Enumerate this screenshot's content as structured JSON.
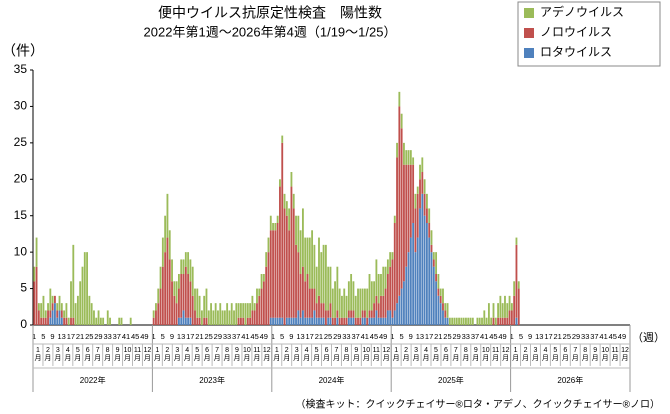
{
  "chart_data": {
    "type": "stacked_bar",
    "title": "便中ウイルス抗原定性検査　陽性数",
    "subtitle": "2022年第1週～2026年第4週（1/19～1/25）",
    "y_label": "（件）",
    "x_label": "（週）",
    "note": "（検査キット：クイックチェイサー®ロタ・アデノ、クイックチェイサー®ノロ）",
    "ylim": [
      0,
      35
    ],
    "yticks": [
      0,
      5,
      10,
      15,
      20,
      25,
      30,
      35
    ],
    "grid": false,
    "legend": "upper right",
    "years": [
      "2022年",
      "2023年",
      "2024年",
      "2025年",
      "2026年"
    ],
    "months": [
      "1月",
      "2月",
      "3月",
      "4月",
      "5月",
      "6月",
      "7月",
      "8月",
      "9月",
      "10月",
      "11月",
      "12月"
    ],
    "categories": [
      "1",
      null,
      null,
      null,
      "5",
      null,
      null,
      null,
      "9",
      null,
      null,
      null,
      "13",
      null,
      null,
      null,
      "17",
      null,
      null,
      null,
      "21",
      null,
      null,
      null,
      "25",
      null,
      null,
      null,
      "29",
      null,
      null,
      null,
      "33",
      null,
      null,
      null,
      "37",
      null,
      null,
      null,
      "41",
      null,
      null,
      null,
      "45",
      null,
      null,
      null,
      "49",
      null,
      null,
      null,
      "1",
      null,
      null,
      null,
      "5",
      null,
      null,
      null,
      "9",
      null,
      null,
      null,
      "13",
      null,
      null,
      null,
      "17",
      null,
      null,
      null,
      "21",
      null,
      null,
      null,
      "25",
      null,
      null,
      null,
      "29",
      null,
      null,
      null,
      "33",
      null,
      null,
      null,
      "37",
      null,
      null,
      null,
      "41",
      null,
      null,
      null,
      "45",
      null,
      null,
      null,
      "49",
      null,
      null,
      null,
      "1",
      null,
      null,
      null,
      "5",
      null,
      null,
      null,
      "9",
      null,
      null,
      null,
      "13",
      null,
      null,
      null,
      "17",
      null,
      null,
      null,
      "21",
      null,
      null,
      null,
      "25",
      null,
      null,
      null,
      "29",
      null,
      null,
      null,
      "33",
      null,
      null,
      null,
      "37",
      null,
      null,
      null,
      "41",
      null,
      null,
      null,
      "45",
      null,
      null,
      null,
      "49",
      null,
      null,
      null,
      "1",
      null,
      null,
      null,
      "5",
      null,
      null,
      null,
      "9",
      null,
      null,
      null,
      "13",
      null,
      null,
      null,
      "17",
      null,
      null,
      null,
      "21",
      null,
      null,
      null,
      "25",
      null,
      null,
      null,
      "29",
      null,
      null,
      null,
      "33",
      null,
      null,
      null,
      "37",
      null,
      null,
      null,
      "41",
      null,
      null,
      null,
      "45",
      null,
      null,
      null,
      "49",
      null,
      null,
      null,
      "1",
      null,
      null,
      null,
      "5",
      null,
      null,
      null,
      "9",
      null,
      null,
      null,
      "13",
      null,
      null,
      null,
      "17",
      null,
      null,
      null,
      "21",
      null,
      null,
      null,
      "25",
      null,
      null,
      null,
      "29",
      null,
      null,
      null,
      "33",
      null,
      null,
      null,
      "37",
      null,
      null,
      null,
      "41",
      null,
      null,
      null,
      "45",
      null,
      null,
      null,
      "49",
      null,
      null,
      null
    ],
    "series": [
      {
        "name": "ロタウイルス",
        "color": "#4f81bd",
        "values": [
          0,
          0,
          0,
          0,
          0,
          0,
          0,
          1,
          2,
          3,
          1,
          2,
          1,
          0,
          0,
          0,
          0,
          0,
          0,
          0,
          0,
          0,
          0,
          0,
          0,
          0,
          0,
          0,
          0,
          0,
          0,
          0,
          0,
          0,
          0,
          0,
          0,
          0,
          0,
          0,
          0,
          0,
          0,
          0,
          0,
          0,
          0,
          0,
          0,
          0,
          0,
          0,
          0,
          0,
          0,
          0,
          0,
          0,
          0,
          0,
          0,
          0,
          0,
          1,
          1,
          2,
          1,
          1,
          1,
          0,
          0,
          0,
          0,
          0,
          0,
          0,
          0,
          0,
          0,
          0,
          0,
          0,
          0,
          0,
          0,
          0,
          0,
          0,
          0,
          0,
          0,
          0,
          0,
          0,
          0,
          0,
          0,
          0,
          0,
          0,
          0,
          0,
          0,
          1,
          1,
          1,
          1,
          1,
          1,
          0,
          1,
          1,
          1,
          1,
          1,
          2,
          1,
          2,
          1,
          1,
          1,
          1,
          2,
          1,
          1,
          1,
          1,
          0,
          1,
          1,
          0,
          0,
          1,
          0,
          0,
          0,
          0,
          1,
          1,
          1,
          0,
          0,
          0,
          1,
          1,
          0,
          1,
          1,
          1,
          2,
          1,
          1,
          1,
          1,
          2,
          2,
          1,
          2,
          3,
          4,
          5,
          6,
          8,
          10,
          12,
          14,
          10,
          12,
          16,
          18,
          15,
          14,
          12,
          10,
          8,
          6,
          4,
          3,
          2,
          1,
          1,
          0,
          0,
          0,
          0,
          0,
          0,
          0,
          0,
          0,
          0,
          0,
          0,
          0,
          0,
          0,
          0,
          0,
          0,
          0,
          0,
          0,
          0,
          0,
          0,
          0,
          0,
          0,
          0,
          0,
          1,
          0,
          null,
          null,
          null,
          null,
          null,
          null,
          null,
          null,
          null,
          null,
          null,
          null,
          null,
          null,
          null,
          null,
          null,
          null,
          null,
          null,
          null,
          null,
          null,
          null,
          null,
          null,
          null,
          null,
          null,
          null,
          null,
          null,
          null,
          null,
          null,
          null,
          null,
          null,
          null,
          null,
          null,
          null,
          null,
          null,
          null,
          null,
          null,
          null
        ]
      },
      {
        "name": "ノロウイルス",
        "color": "#c0504d",
        "values": [
          6,
          8,
          2,
          1,
          1,
          1,
          2,
          1,
          1,
          1,
          1,
          0,
          1,
          1,
          1,
          0,
          1,
          1,
          0,
          0,
          0,
          0,
          0,
          0,
          0,
          0,
          0,
          0,
          0,
          0,
          0,
          0,
          0,
          0,
          0,
          0,
          0,
          0,
          0,
          0,
          0,
          0,
          0,
          0,
          0,
          0,
          0,
          0,
          0,
          0,
          0,
          0,
          1,
          2,
          3,
          5,
          8,
          10,
          12,
          9,
          6,
          4,
          3,
          4,
          6,
          5,
          7,
          6,
          5,
          4,
          2,
          1,
          1,
          0,
          1,
          1,
          0,
          0,
          0,
          0,
          0,
          0,
          0,
          0,
          0,
          0,
          0,
          0,
          0,
          1,
          1,
          1,
          0,
          1,
          1,
          2,
          2,
          3,
          4,
          5,
          6,
          8,
          10,
          12,
          12,
          12,
          13,
          18,
          24,
          16,
          14,
          12,
          18,
          15,
          10,
          8,
          6,
          6,
          5,
          6,
          4,
          4,
          3,
          2,
          3,
          2,
          2,
          2,
          1,
          2,
          1,
          1,
          1,
          1,
          1,
          1,
          1,
          1,
          1,
          1,
          1,
          1,
          1,
          1,
          1,
          1,
          1,
          1,
          2,
          2,
          2,
          3,
          3,
          4,
          5,
          6,
          8,
          12,
          20,
          26,
          22,
          16,
          14,
          12,
          10,
          8,
          6,
          6,
          4,
          3,
          3,
          2,
          2,
          1,
          1,
          1,
          1,
          1,
          1,
          1,
          0,
          0,
          0,
          0,
          0,
          0,
          0,
          0,
          0,
          0,
          0,
          0,
          0,
          0,
          0,
          0,
          0,
          0,
          0,
          0,
          1,
          0,
          1,
          1,
          1,
          1,
          1,
          2,
          2,
          4,
          10,
          5,
          null,
          null,
          null,
          null,
          null,
          null,
          null,
          null,
          null,
          null,
          null,
          null,
          null,
          null,
          null,
          null,
          null,
          null,
          null,
          null,
          null,
          null,
          null,
          null,
          null,
          null,
          null,
          null,
          null,
          null,
          null,
          null,
          null,
          null,
          null,
          null,
          null,
          null,
          null,
          null,
          null,
          null,
          null,
          null,
          null,
          null,
          null,
          null
        ]
      },
      {
        "name": "アデノウイルス",
        "color": "#9bbb59",
        "values": [
          2,
          4,
          1,
          2,
          3,
          1,
          1,
          3,
          1,
          0,
          1,
          2,
          1,
          1,
          2,
          1,
          5,
          10,
          3,
          4,
          6,
          8,
          10,
          10,
          4,
          3,
          2,
          1,
          2,
          1,
          1,
          0,
          2,
          1,
          0,
          0,
          0,
          1,
          1,
          0,
          0,
          0,
          1,
          0,
          0,
          0,
          0,
          0,
          0,
          0,
          0,
          0,
          1,
          1,
          2,
          3,
          4,
          5,
          6,
          4,
          3,
          2,
          3,
          2,
          2,
          2,
          2,
          3,
          3,
          4,
          3,
          4,
          3,
          2,
          3,
          4,
          2,
          3,
          2,
          3,
          2,
          3,
          2,
          2,
          3,
          2,
          3,
          2,
          3,
          2,
          2,
          2,
          3,
          2,
          2,
          2,
          1,
          2,
          1,
          2,
          1,
          2,
          2,
          2,
          1,
          1,
          1,
          1,
          1,
          2,
          2,
          3,
          2,
          2,
          4,
          5,
          6,
          8,
          6,
          5,
          7,
          8,
          6,
          5,
          8,
          7,
          8,
          9,
          6,
          5,
          4,
          5,
          6,
          4,
          3,
          4,
          3,
          4,
          5,
          4,
          3,
          4,
          4,
          3,
          3,
          4,
          5,
          4,
          3,
          5,
          4,
          3,
          4,
          3,
          2,
          2,
          1,
          1,
          2,
          2,
          2,
          3,
          2,
          2,
          2,
          1,
          2,
          1,
          2,
          2,
          2,
          2,
          2,
          2,
          1,
          3,
          2,
          1,
          2,
          1,
          2,
          1,
          1,
          1,
          1,
          1,
          1,
          1,
          1,
          1,
          1,
          1,
          0,
          1,
          1,
          1,
          2,
          1,
          3,
          1,
          2,
          1,
          2,
          3,
          2,
          3,
          2,
          2,
          1,
          2,
          1,
          1,
          null,
          null,
          null,
          null,
          null,
          null,
          null,
          null,
          null,
          null,
          null,
          null,
          null,
          null,
          null,
          null,
          null,
          null,
          null,
          null,
          null,
          null,
          null,
          null,
          null,
          null,
          null,
          null,
          null,
          null,
          null,
          null,
          null,
          null,
          null,
          null,
          null,
          null,
          null,
          null,
          null,
          null,
          null,
          null,
          null,
          null,
          null,
          null
        ]
      }
    ]
  }
}
